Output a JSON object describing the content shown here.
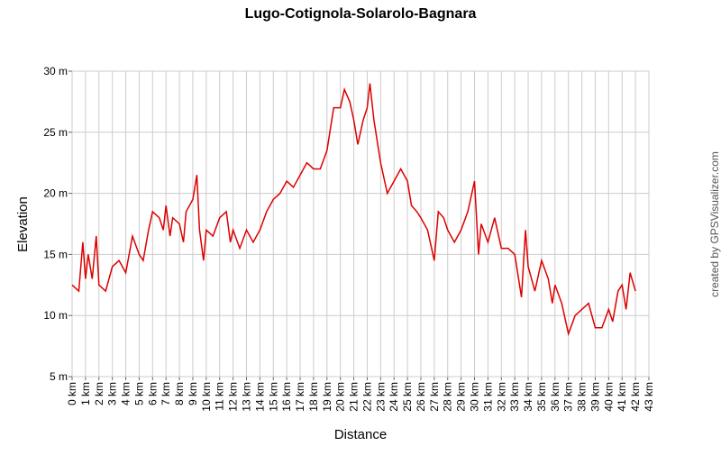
{
  "chart_data": {
    "type": "line",
    "title": "Lugo-Cotignola-Solarolo-Bagnara",
    "x_label": "Distance",
    "y_label": "Elevation",
    "credit": "created by GPSVisualizer.com",
    "grid": true,
    "xlim": [
      0,
      43
    ],
    "ylim": [
      5,
      30
    ],
    "xticks": [
      {
        "value": 0,
        "label": "0 km"
      },
      {
        "value": 1,
        "label": "1 km"
      },
      {
        "value": 2,
        "label": "2 km"
      },
      {
        "value": 3,
        "label": "3 km"
      },
      {
        "value": 4,
        "label": "4 km"
      },
      {
        "value": 5,
        "label": "5 km"
      },
      {
        "value": 6,
        "label": "6 km"
      },
      {
        "value": 7,
        "label": "7 km"
      },
      {
        "value": 8,
        "label": "8 km"
      },
      {
        "value": 9,
        "label": "9 km"
      },
      {
        "value": 10,
        "label": "10 km"
      },
      {
        "value": 11,
        "label": "11 km"
      },
      {
        "value": 12,
        "label": "12 km"
      },
      {
        "value": 13,
        "label": "13 km"
      },
      {
        "value": 14,
        "label": "14 km"
      },
      {
        "value": 15,
        "label": "15 km"
      },
      {
        "value": 16,
        "label": "16 km"
      },
      {
        "value": 17,
        "label": "17 km"
      },
      {
        "value": 18,
        "label": "18 km"
      },
      {
        "value": 19,
        "label": "19 km"
      },
      {
        "value": 20,
        "label": "20 km"
      },
      {
        "value": 21,
        "label": "21 km"
      },
      {
        "value": 22,
        "label": "22 km"
      },
      {
        "value": 23,
        "label": "23 km"
      },
      {
        "value": 24,
        "label": "24 km"
      },
      {
        "value": 25,
        "label": "25 km"
      },
      {
        "value": 26,
        "label": "26 km"
      },
      {
        "value": 27,
        "label": "27 km"
      },
      {
        "value": 28,
        "label": "28 km"
      },
      {
        "value": 29,
        "label": "29 km"
      },
      {
        "value": 30,
        "label": "30 km"
      },
      {
        "value": 31,
        "label": "31 km"
      },
      {
        "value": 32,
        "label": "32 km"
      },
      {
        "value": 33,
        "label": "33 km"
      },
      {
        "value": 34,
        "label": "34 km"
      },
      {
        "value": 35,
        "label": "35 km"
      },
      {
        "value": 36,
        "label": "36 km"
      },
      {
        "value": 37,
        "label": "37 km"
      },
      {
        "value": 38,
        "label": "38 km"
      },
      {
        "value": 39,
        "label": "39 km"
      },
      {
        "value": 40,
        "label": "40 km"
      },
      {
        "value": 41,
        "label": "41 km"
      },
      {
        "value": 42,
        "label": "42 km"
      },
      {
        "value": 43,
        "label": "43 km"
      }
    ],
    "yticks": [
      {
        "value": 5,
        "label": "5 m"
      },
      {
        "value": 10,
        "label": "10 m"
      },
      {
        "value": 15,
        "label": "15 m"
      },
      {
        "value": 20,
        "label": "20 m"
      },
      {
        "value": 25,
        "label": "25 m"
      },
      {
        "value": 30,
        "label": "30 m"
      }
    ],
    "x": [
      0,
      0.5,
      0.8,
      1,
      1.2,
      1.5,
      1.8,
      2,
      2.5,
      3,
      3.5,
      4,
      4.5,
      5,
      5.3,
      5.7,
      6,
      6.5,
      6.8,
      7,
      7.3,
      7.5,
      8,
      8.3,
      8.5,
      9,
      9.3,
      9.5,
      9.8,
      10,
      10.5,
      11,
      11.5,
      11.8,
      12,
      12.5,
      13,
      13.5,
      14,
      14.5,
      15,
      15.5,
      16,
      16.5,
      17,
      17.5,
      18,
      18.5,
      19,
      19.5,
      20,
      20.3,
      20.7,
      21,
      21.3,
      21.7,
      22,
      22.2,
      22.5,
      23,
      23.5,
      24,
      24.5,
      25,
      25.3,
      25.7,
      26,
      26.5,
      27,
      27.3,
      27.7,
      28,
      28.5,
      29,
      29.5,
      30,
      30.3,
      30.5,
      31,
      31.5,
      32,
      32.5,
      33,
      33.5,
      33.8,
      34,
      34.5,
      35,
      35.5,
      35.8,
      36,
      36.5,
      37,
      37.5,
      38,
      38.5,
      39,
      39.5,
      40,
      40.3,
      40.7,
      41,
      41.3,
      41.6,
      42
    ],
    "series": [
      {
        "name": "Elevation",
        "color": "#dd0000",
        "values": [
          12.5,
          12,
          16,
          13,
          15,
          13,
          16.5,
          12.5,
          12,
          14,
          14.5,
          13.5,
          16.5,
          15,
          14.5,
          17,
          18.5,
          18,
          17,
          19,
          16.5,
          18,
          17.5,
          16,
          18.5,
          19.5,
          21.5,
          17,
          14.5,
          17,
          16.5,
          18,
          18.5,
          16,
          17,
          15.5,
          17,
          16,
          17,
          18.5,
          19.5,
          20,
          21,
          20.5,
          21.5,
          22.5,
          22,
          22,
          23.5,
          27,
          27,
          28.5,
          27.5,
          26,
          24,
          26,
          27,
          29,
          26,
          22.5,
          20,
          21,
          22,
          21,
          19,
          18.5,
          18,
          17,
          14.5,
          18.5,
          18,
          17,
          16,
          17,
          18.5,
          21,
          15,
          17.5,
          16,
          18,
          15.5,
          15.5,
          15,
          11.5,
          17,
          14,
          12,
          14.5,
          13,
          11,
          12.5,
          11,
          8.5,
          10,
          10.5,
          11,
          9,
          9,
          10.5,
          9.5,
          12,
          12.5,
          10.5,
          13.5,
          12
        ]
      }
    ]
  }
}
